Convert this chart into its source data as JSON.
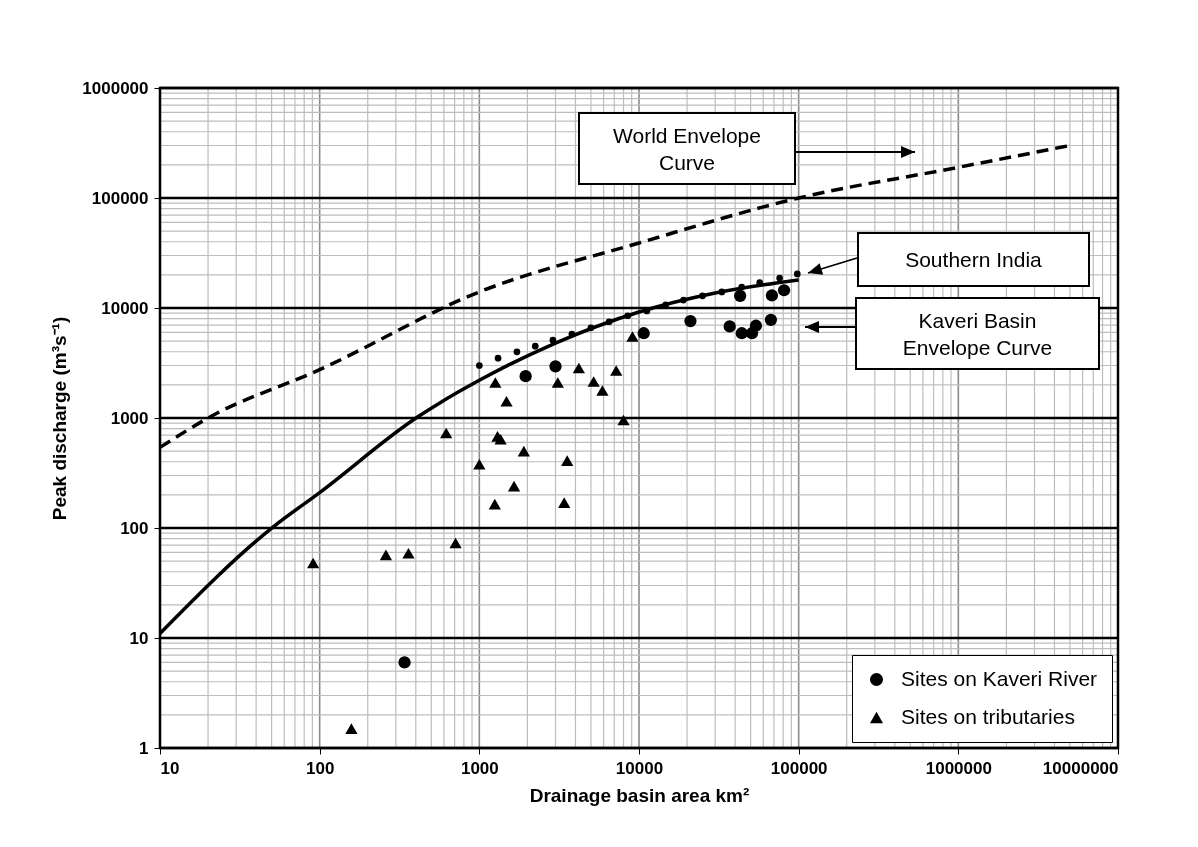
{
  "chart_data": {
    "type": "scatter",
    "xlabel": "Drainage basin area km²",
    "ylabel": "Peak discharge (m³s⁻¹)",
    "log": "xy",
    "grid": true,
    "legend": "bottom right",
    "xlim": [
      10,
      10000000
    ],
    "xticks": [
      10,
      100,
      1000,
      10000,
      100000,
      1000000,
      10000000
    ],
    "ylim": [
      1,
      1000000
    ],
    "yticks": [
      1,
      10,
      100,
      1000,
      10000,
      100000,
      1000000
    ],
    "series": [
      {
        "name": "World Envelope Curve",
        "type": "line",
        "line_style": "dashed",
        "marker": "none",
        "color": "#000000",
        "x": [
          10,
          20,
          100,
          1000,
          10000,
          100000,
          1000000,
          5000000
        ],
        "values": [
          540,
          1000,
          2750,
          14000,
          39000,
          100000,
          190000,
          300000
        ]
      },
      {
        "name": "Southern India",
        "type": "scatter",
        "marker": "circle",
        "color": "#000000",
        "x": [
          1000,
          1310,
          1720,
          2240,
          2890,
          3800,
          5000,
          6500,
          8500,
          11200,
          14700,
          19000,
          25000,
          33000,
          44000,
          57000,
          76000,
          98000
        ],
        "values": [
          3000,
          3500,
          4000,
          4500,
          5100,
          5800,
          6600,
          7500,
          8500,
          9400,
          10700,
          11800,
          12900,
          14000,
          15500,
          17000,
          18700,
          20400
        ]
      },
      {
        "name": "Kaveri Basin Envelope Curve",
        "type": "line",
        "line_style": "solid",
        "marker": "none",
        "color": "#000000",
        "x": [
          10,
          51,
          100,
          410,
          565,
          1000,
          3000,
          10000,
          30000,
          100000
        ],
        "values": [
          11,
          102,
          210,
          1020,
          1370,
          2200,
          4800,
          9200,
          13700,
          18000
        ]
      },
      {
        "name": "Sites on Kaveri River",
        "type": "scatter",
        "marker": "circle",
        "color": "#000000",
        "x": [
          340,
          1950,
          3000,
          10700,
          21000,
          37000,
          44000,
          51000,
          54000,
          67000,
          43000,
          68000,
          81000
        ],
        "values": [
          6,
          2400,
          2950,
          5900,
          7600,
          6800,
          5900,
          5900,
          6900,
          7800,
          12900,
          13000,
          14500
        ]
      },
      {
        "name": "Sites on tributaries",
        "type": "scatter",
        "marker": "triangle",
        "color": "#000000",
        "x": [
          91,
          260,
          360,
          710,
          158,
          620,
          1000,
          1250,
          1650,
          1300,
          1360,
          1900,
          3550,
          3400,
          1260,
          1480,
          3100,
          4200,
          5200,
          5900,
          7200,
          8000,
          9100
        ],
        "values": [
          48,
          57,
          59,
          73,
          1.5,
          730,
          380,
          165,
          240,
          680,
          640,
          500,
          410,
          170,
          2100,
          1420,
          2100,
          2850,
          2150,
          1780,
          2700,
          960,
          5500
        ]
      }
    ]
  }
}
